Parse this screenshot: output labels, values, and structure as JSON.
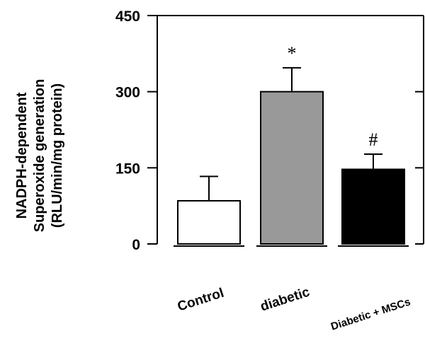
{
  "chart_data": {
    "type": "bar",
    "title": "",
    "ylabel_lines": [
      "NADPH-dependent",
      "Superoxide generation",
      "(RLU/min/mg protein)"
    ],
    "xlabel": "",
    "categories": [
      "Control",
      "diabetic",
      "Diabetic + MSCs"
    ],
    "values": [
      85,
      300,
      147
    ],
    "errors": [
      48,
      47,
      30
    ],
    "annotations": [
      "",
      "*",
      "#"
    ],
    "bar_colors": [
      "#ffffff",
      "#999999",
      "#000000"
    ],
    "ylim": [
      0,
      450
    ],
    "yticks": [
      0,
      150,
      300,
      450
    ],
    "ytick_labels": [
      "0",
      "150",
      "300",
      "450"
    ],
    "grid": false,
    "legend": "none"
  }
}
